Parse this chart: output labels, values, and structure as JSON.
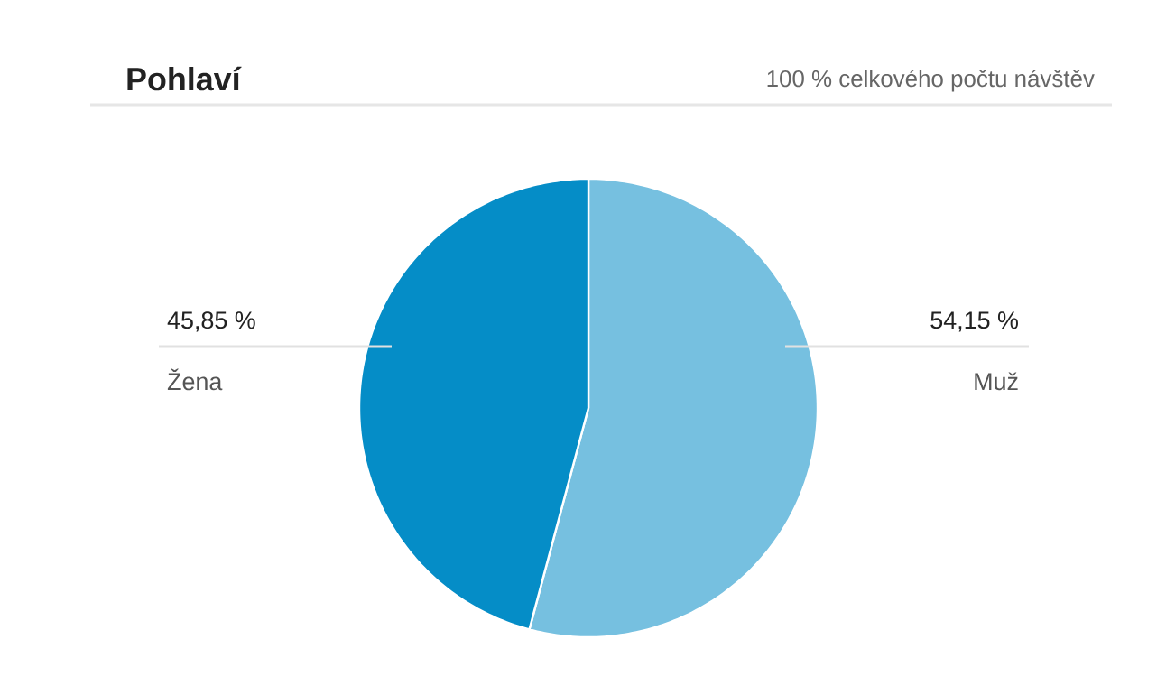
{
  "chart_data": {
    "type": "pie",
    "title": "Pohlaví",
    "subtitle": "100 % celkového počtu návštěv",
    "categories": [
      "Muž",
      "Žena"
    ],
    "values": [
      54.15,
      45.85
    ],
    "value_labels": [
      "54,15 %",
      "45,85 %"
    ],
    "colors": [
      "#76c0e0",
      "#058dc7"
    ]
  }
}
